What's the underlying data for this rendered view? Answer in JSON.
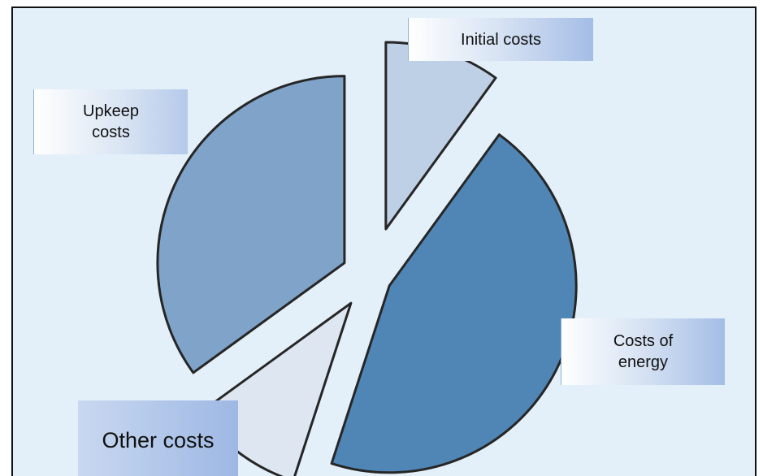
{
  "chart_data": {
    "type": "pie",
    "title": "",
    "style": "exploded",
    "slices": [
      {
        "label": "Initial costs",
        "value": 10,
        "color": "#bdd0e6"
      },
      {
        "label": "Costs of\nenergy",
        "value": 45,
        "color": "#4f86b5"
      },
      {
        "label": "Other costs",
        "value": 10,
        "color": "#dde6f1"
      },
      {
        "label": "Upkeep\ncosts",
        "value": 35,
        "color": "#7fa3c9"
      }
    ],
    "start_angle_deg": 0,
    "direction": "clockwise",
    "outline_color": "#262626"
  },
  "colors": {
    "background": "#e3f0f9",
    "frame": "#111111"
  }
}
